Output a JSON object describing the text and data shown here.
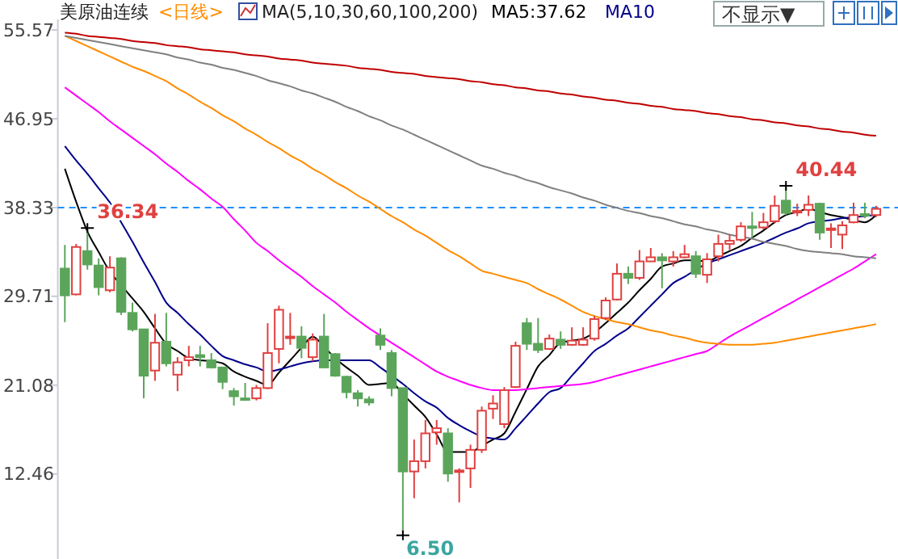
{
  "chart_data": {
    "type": "candlestick",
    "title": "美原油连续",
    "subtitle": "<日线>",
    "legend_title": "MA(5,10,30,60,100,200)",
    "legend": "top",
    "categories": [
      null,
      null,
      null,
      null,
      null,
      null,
      null,
      null,
      null,
      null,
      null,
      null,
      null,
      null,
      null,
      null,
      null,
      null,
      null,
      null,
      null,
      null,
      null,
      null,
      null,
      null,
      null,
      null,
      null,
      null,
      null,
      null,
      null,
      null,
      null,
      null,
      null,
      null,
      null,
      null,
      null,
      null,
      null,
      null,
      null,
      null,
      null,
      null,
      null,
      null,
      null,
      null,
      null,
      null,
      null,
      null,
      null,
      null,
      null,
      null,
      null,
      null,
      null,
      null,
      null,
      null,
      null,
      null,
      null,
      null,
      null,
      null,
      null
    ],
    "ylim": [
      4.2,
      56.6
    ],
    "yticks": [
      55.57,
      46.95,
      38.33,
      29.71,
      21.08,
      12.46
    ],
    "ref_lines": [
      {
        "axis": "y",
        "value": 38.33,
        "color": "#1e90ff",
        "line_style": "dashed"
      }
    ],
    "annotations": [
      "36.34",
      "6.50",
      "40.44",
      "不显示▼"
    ],
    "series": [
      {
        "ohlc": [
          [
            32.4,
            34.7,
            27.2,
            29.8
          ],
          [
            29.9,
            34.8,
            29.8,
            34.5
          ],
          [
            34.1,
            36.34,
            32.3,
            32.8
          ],
          [
            32.7,
            33.4,
            29.8,
            30.6
          ],
          [
            30.3,
            33.6,
            30.1,
            32.5
          ],
          [
            33.4,
            33.5,
            27.9,
            28.2
          ],
          [
            28.1,
            29.1,
            26.3,
            26.5
          ],
          [
            26.5,
            26.5,
            19.8,
            22.0
          ],
          [
            22.5,
            28.0,
            21.5,
            25.2
          ],
          [
            25.3,
            28.1,
            22.9,
            23.2
          ],
          [
            22.1,
            23.8,
            20.5,
            23.3
          ],
          [
            23.5,
            24.9,
            22.9,
            23.8
          ],
          [
            24.0,
            24.9,
            22.9,
            23.8
          ],
          [
            23.5,
            24.2,
            22.7,
            22.8
          ],
          [
            22.8,
            22.8,
            20.7,
            21.4
          ],
          [
            20.5,
            20.8,
            19.1,
            20.0
          ],
          [
            19.8,
            21.3,
            19.7,
            19.7
          ],
          [
            19.8,
            21.1,
            19.6,
            20.8
          ],
          [
            20.8,
            27.1,
            20.7,
            24.2
          ],
          [
            24.6,
            28.8,
            23.2,
            28.4
          ],
          [
            25.7,
            28.1,
            25.0,
            25.8
          ],
          [
            25.8,
            26.8,
            23.7,
            24.7
          ],
          [
            23.8,
            26.1,
            23.4,
            25.5
          ],
          [
            25.8,
            28.0,
            22.8,
            22.8
          ],
          [
            24.1,
            24.2,
            21.9,
            22.0
          ],
          [
            21.9,
            22.0,
            19.8,
            20.4
          ],
          [
            20.3,
            20.6,
            19.0,
            19.8
          ],
          [
            19.7,
            20.0,
            19.1,
            19.4
          ],
          [
            25.9,
            26.6,
            24.5,
            25.0
          ],
          [
            24.2,
            24.5,
            20.0,
            20.8
          ],
          [
            20.8,
            20.8,
            6.5,
            12.7
          ],
          [
            12.7,
            15.8,
            10.1,
            13.7
          ],
          [
            13.7,
            17.7,
            13.0,
            16.4
          ],
          [
            16.5,
            17.7,
            15.3,
            16.9
          ],
          [
            16.4,
            16.9,
            11.7,
            12.5
          ],
          [
            12.7,
            13.0,
            9.7,
            12.8
          ],
          [
            13.0,
            15.3,
            11.1,
            14.8
          ],
          [
            14.8,
            19.0,
            14.5,
            18.6
          ],
          [
            18.8,
            20.1,
            17.8,
            19.3
          ],
          [
            17.3,
            20.9,
            16.9,
            20.6
          ],
          [
            20.9,
            25.3,
            20.8,
            24.9
          ],
          [
            27.1,
            27.6,
            24.5,
            25.1
          ],
          [
            25.1,
            27.6,
            24.2,
            24.5
          ],
          [
            24.6,
            26.0,
            24.5,
            25.6
          ],
          [
            25.5,
            26.3,
            24.6,
            25.0
          ],
          [
            25.0,
            26.7,
            24.9,
            25.4
          ],
          [
            25.0,
            26.7,
            24.9,
            25.5
          ],
          [
            25.6,
            27.8,
            25.4,
            27.5
          ],
          [
            27.6,
            29.6,
            27.4,
            29.3
          ],
          [
            29.4,
            32.9,
            29.3,
            31.9
          ],
          [
            31.9,
            32.6,
            30.9,
            31.5
          ],
          [
            31.5,
            34.2,
            31.3,
            33.1
          ],
          [
            33.1,
            34.4,
            33.1,
            33.5
          ],
          [
            33.5,
            33.9,
            30.5,
            33.2
          ],
          [
            33.1,
            34.1,
            32.6,
            33.5
          ],
          [
            33.5,
            34.7,
            33.4,
            33.8
          ],
          [
            33.6,
            34.1,
            31.5,
            31.9
          ],
          [
            31.8,
            33.9,
            31.0,
            33.3
          ],
          [
            33.6,
            35.7,
            33.1,
            34.8
          ],
          [
            34.8,
            35.7,
            34.2,
            35.1
          ],
          [
            35.2,
            36.9,
            35.0,
            36.5
          ],
          [
            36.5,
            37.9,
            35.4,
            36.4
          ],
          [
            36.4,
            37.8,
            36.2,
            36.9
          ],
          [
            37.0,
            39.5,
            36.8,
            38.5
          ],
          [
            39.0,
            40.44,
            37.6,
            37.8
          ],
          [
            37.9,
            38.7,
            37.5,
            38.0
          ],
          [
            38.1,
            39.5,
            37.5,
            38.6
          ],
          [
            38.7,
            38.8,
            35.2,
            35.9
          ],
          [
            36.2,
            36.8,
            34.4,
            36.3
          ],
          [
            35.7,
            37.0,
            34.3,
            36.6
          ],
          [
            36.9,
            38.8,
            36.8,
            37.6
          ],
          [
            37.7,
            38.8,
            37.3,
            37.6
          ],
          [
            37.6,
            38.5,
            37.4,
            38.2
          ]
        ]
      },
      {
        "type": "line",
        "name": "MA5:37.62",
        "color": "#000000",
        "values": [
          42.1,
          38.9,
          36.0,
          34.0,
          32.1,
          30.8,
          29.5,
          28.2,
          26.6,
          25.1,
          24.4,
          23.7,
          23.5,
          23.4,
          23.2,
          22.4,
          21.9,
          21.5,
          21.1,
          22.3,
          23.5,
          24.7,
          25.8,
          24.8,
          23.7,
          22.8,
          22.0,
          21.1,
          21.2,
          21.3,
          20.2,
          19.1,
          18.0,
          16.3,
          14.6,
          14.6,
          14.6,
          15.2,
          15.8,
          16.4,
          18.5,
          20.7,
          22.9,
          24.0,
          25.2,
          25.4,
          25.6,
          26.2,
          27.1,
          28.1,
          29.1,
          30.3,
          31.4,
          32.6,
          32.9,
          33.2,
          33.2,
          33.1,
          33.6,
          34.1,
          34.6,
          35.4,
          36.1,
          36.9,
          37.6,
          37.9,
          38.2,
          37.9,
          37.6,
          37.4,
          37.1,
          36.9,
          37.6
        ]
      },
      {
        "type": "line",
        "name": "MA10",
        "color": "#00008b",
        "values": [
          44.3,
          42.9,
          41.6,
          40.2,
          38.8,
          36.9,
          35.0,
          33.0,
          31.1,
          29.1,
          28.1,
          27.0,
          26.0,
          24.9,
          23.9,
          23.5,
          23.1,
          22.8,
          22.4,
          22.6,
          22.9,
          23.2,
          23.4,
          23.5,
          23.5,
          23.5,
          23.5,
          23.5,
          22.8,
          22.0,
          21.2,
          20.3,
          19.5,
          18.9,
          17.9,
          17.2,
          16.6,
          16.1,
          15.9,
          15.8,
          16.9,
          18.1,
          19.3,
          20.4,
          20.8,
          22.0,
          23.2,
          24.4,
          25.1,
          25.9,
          26.6,
          27.7,
          28.8,
          29.9,
          31.0,
          31.6,
          32.3,
          32.9,
          33.3,
          33.7,
          34.1,
          34.5,
          34.9,
          35.4,
          35.9,
          36.3,
          36.8,
          37.0,
          37.1,
          37.3,
          37.4,
          37.5,
          37.6
        ]
      },
      {
        "type": "line",
        "color": "#ff00ff",
        "values": [
          50.0,
          49.2,
          48.4,
          47.6,
          46.7,
          45.9,
          45.1,
          44.3,
          43.5,
          42.6,
          41.8,
          40.9,
          40.1,
          39.2,
          38.4,
          37.2,
          36.1,
          34.9,
          34.1,
          33.2,
          32.4,
          31.6,
          30.7,
          29.9,
          29.1,
          28.2,
          27.4,
          26.6,
          25.9,
          25.2,
          24.5,
          23.8,
          23.1,
          22.4,
          21.9,
          21.5,
          21.1,
          20.8,
          20.6,
          20.6,
          20.6,
          20.7,
          20.8,
          20.9,
          21.0,
          21.1,
          21.2,
          21.4,
          21.7,
          22.0,
          22.3,
          22.6,
          22.9,
          23.2,
          23.5,
          23.8,
          24.1,
          24.4,
          25.1,
          25.8,
          26.4,
          27.0,
          27.6,
          28.2,
          28.8,
          29.4,
          30.0,
          30.6,
          31.2,
          31.8,
          32.4,
          33.1,
          33.8
        ]
      },
      {
        "type": "line",
        "color": "#ff8c00",
        "values": [
          55.0,
          54.5,
          54.0,
          53.5,
          53.0,
          52.5,
          52.0,
          51.6,
          51.1,
          50.6,
          49.9,
          49.3,
          48.6,
          48.0,
          47.3,
          46.7,
          46.0,
          45.4,
          44.7,
          44.1,
          43.4,
          42.8,
          42.1,
          41.5,
          40.8,
          40.2,
          39.5,
          38.9,
          38.2,
          37.5,
          36.9,
          36.2,
          35.6,
          34.9,
          34.2,
          33.6,
          32.9,
          32.2,
          31.9,
          31.6,
          31.3,
          31.0,
          30.4,
          29.9,
          29.4,
          28.8,
          28.2,
          27.8,
          27.5,
          27.2,
          27.0,
          26.7,
          26.4,
          26.2,
          25.9,
          25.7,
          25.4,
          25.2,
          25.1,
          25.0,
          25.0,
          25.0,
          25.1,
          25.2,
          25.4,
          25.6,
          25.8,
          26.0,
          26.2,
          26.4,
          26.6,
          26.8,
          27.0
        ]
      },
      {
        "type": "line",
        "color": "#808080",
        "values": [
          55.0,
          54.8,
          54.6,
          54.4,
          54.2,
          54.0,
          53.8,
          53.6,
          53.4,
          53.2,
          52.9,
          52.7,
          52.4,
          52.2,
          51.9,
          51.7,
          51.4,
          51.1,
          50.7,
          50.4,
          50.1,
          49.7,
          49.4,
          49.0,
          48.6,
          48.1,
          47.7,
          47.2,
          46.8,
          46.3,
          45.9,
          45.4,
          44.9,
          44.4,
          43.9,
          43.4,
          42.9,
          42.4,
          42.1,
          41.7,
          41.4,
          41.0,
          40.7,
          40.3,
          40.0,
          39.7,
          39.3,
          39.0,
          38.6,
          38.3,
          38.0,
          37.8,
          37.5,
          37.3,
          37.0,
          36.7,
          36.5,
          36.2,
          36.0,
          35.7,
          35.5,
          35.3,
          35.0,
          34.8,
          34.6,
          34.3,
          34.1,
          34.0,
          33.9,
          33.8,
          33.6,
          33.5,
          33.4
        ]
      },
      {
        "type": "line",
        "color": "#c00000",
        "values": [
          55.3,
          55.2,
          55.0,
          54.9,
          54.8,
          54.7,
          54.5,
          54.4,
          54.3,
          54.1,
          54.0,
          53.9,
          53.7,
          53.6,
          53.5,
          53.4,
          53.2,
          53.1,
          53.0,
          52.8,
          52.7,
          52.6,
          52.4,
          52.3,
          52.2,
          52.1,
          51.9,
          51.8,
          51.7,
          51.5,
          51.4,
          51.3,
          51.1,
          51.0,
          50.9,
          50.8,
          50.6,
          50.5,
          50.3,
          50.2,
          50.0,
          49.9,
          49.7,
          49.6,
          49.4,
          49.3,
          49.1,
          49.0,
          48.8,
          48.7,
          48.5,
          48.4,
          48.2,
          48.1,
          47.9,
          47.8,
          47.7,
          47.5,
          47.4,
          47.2,
          47.1,
          46.9,
          46.8,
          46.6,
          46.5,
          46.3,
          46.2,
          46.0,
          45.9,
          45.7,
          45.6,
          45.4,
          45.3
        ]
      }
    ]
  }
}
